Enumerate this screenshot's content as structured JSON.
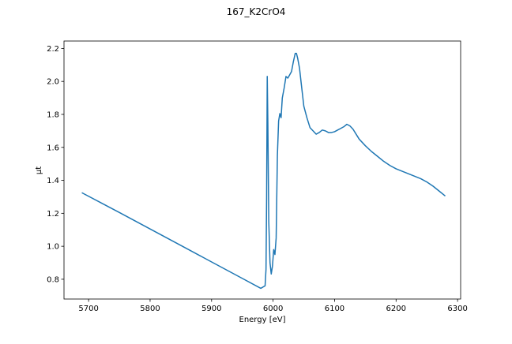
{
  "chart_data": {
    "type": "line",
    "title": "167_K2CrO4",
    "xlabel": "Energy [eV]",
    "ylabel": "μt",
    "xlim": [
      5660,
      6305
    ],
    "ylim": [
      0.68,
      2.245
    ],
    "x_ticks": [
      5700,
      5800,
      5900,
      6000,
      6100,
      6200,
      6300
    ],
    "y_ticks": [
      0.8,
      1.0,
      1.2,
      1.4,
      1.6,
      1.8,
      2.0,
      2.2
    ],
    "x_tick_labels": [
      "5700",
      "5800",
      "5900",
      "6000",
      "6100",
      "6200",
      "6300"
    ],
    "y_tick_labels": [
      "0.8",
      "1.0",
      "1.2",
      "1.4",
      "1.6",
      "1.8",
      "2.0",
      "2.2"
    ],
    "grid": false,
    "line_color": "#1f77b4",
    "series": [
      {
        "x": [
          5689,
          5750,
          5800,
          5850,
          5900,
          5950,
          5980,
          5987,
          5988.5,
          5989.5,
          5990.5,
          5991.5,
          5993,
          5995,
          5997,
          5999,
          6001,
          6003,
          6005,
          6007,
          6009,
          6011,
          6013,
          6015,
          6018,
          6021,
          6024,
          6027,
          6030,
          6033,
          6036,
          6038,
          6040,
          6043,
          6046,
          6050,
          6055,
          6060,
          6065,
          6070,
          6075,
          6080,
          6085,
          6090,
          6095,
          6100,
          6105,
          6110,
          6115,
          6120,
          6125,
          6130,
          6135,
          6140,
          6150,
          6160,
          6170,
          6180,
          6190,
          6200,
          6210,
          6220,
          6230,
          6240,
          6250,
          6260,
          6270,
          6280
        ],
        "y": [
          1.325,
          1.205,
          1.105,
          1.005,
          0.905,
          0.805,
          0.745,
          0.76,
          0.86,
          1.3,
          2.03,
          1.75,
          1.15,
          0.9,
          0.832,
          0.88,
          0.98,
          0.95,
          1.05,
          1.55,
          1.76,
          1.805,
          1.78,
          1.9,
          1.96,
          2.03,
          2.02,
          2.04,
          2.06,
          2.12,
          2.17,
          2.17,
          2.14,
          2.08,
          1.98,
          1.85,
          1.78,
          1.72,
          1.7,
          1.68,
          1.69,
          1.705,
          1.7,
          1.69,
          1.69,
          1.695,
          1.705,
          1.715,
          1.725,
          1.74,
          1.73,
          1.71,
          1.68,
          1.65,
          1.61,
          1.575,
          1.545,
          1.515,
          1.49,
          1.47,
          1.455,
          1.44,
          1.425,
          1.41,
          1.39,
          1.365,
          1.335,
          1.305
        ]
      }
    ]
  }
}
